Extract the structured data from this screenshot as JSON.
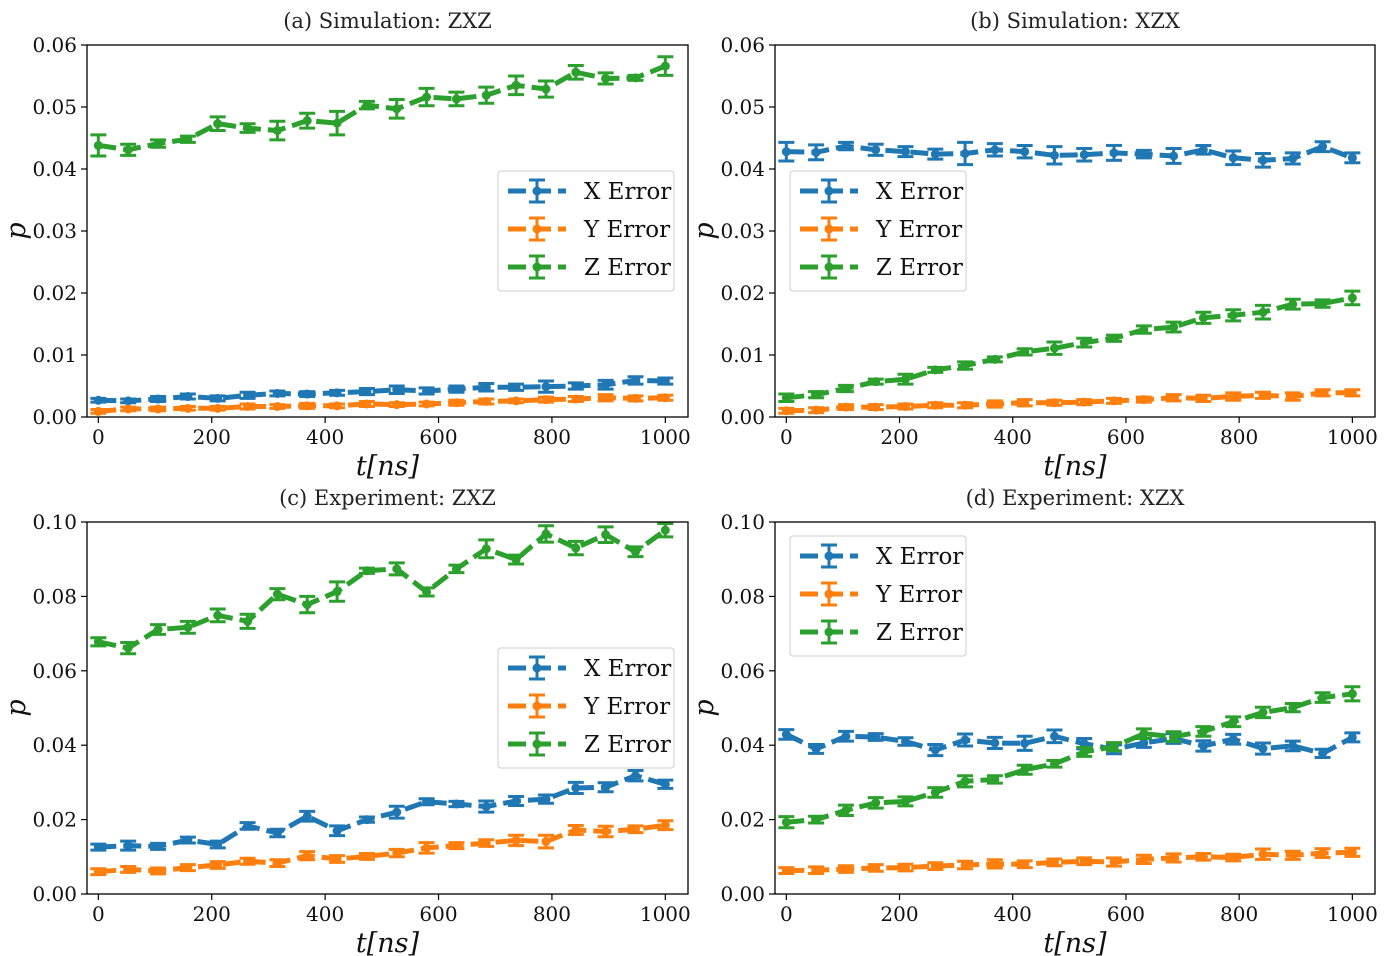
{
  "colors": {
    "x_error": "#1f77b4",
    "y_error": "#ff7f0e",
    "z_error": "#2ca02c"
  },
  "chart_data": [
    {
      "type": "line",
      "title": "(a) Simulation:  ZXZ",
      "xlabel": "t[ns]",
      "ylabel": "p",
      "xlim": [
        -20,
        1040
      ],
      "ylim": [
        0,
        0.06
      ],
      "xticks": [
        "0",
        "200",
        "400",
        "600",
        "800",
        "1000"
      ],
      "yticks": [
        "0.00",
        "0.01",
        "0.02",
        "0.03",
        "0.04",
        "0.05",
        "0.06"
      ],
      "legend_position": "center-right",
      "x": [
        0,
        52.6,
        105.3,
        157.9,
        210.5,
        263.2,
        315.8,
        368.4,
        421.1,
        473.7,
        526.3,
        578.9,
        631.6,
        684.2,
        736.8,
        789.5,
        842.1,
        894.7,
        947.4,
        1000
      ],
      "series": [
        {
          "name": "X Error",
          "color": "#1f77b4",
          "values": [
            0.0027,
            0.0026,
            0.0029,
            0.0033,
            0.003,
            0.0035,
            0.0038,
            0.0037,
            0.0039,
            0.0041,
            0.0044,
            0.0042,
            0.0045,
            0.0048,
            0.0048,
            0.0049,
            0.005,
            0.0052,
            0.0059,
            0.0058
          ],
          "errors": [
            0.0003,
            0.0003,
            0.0004,
            0.0004,
            0.0004,
            0.0005,
            0.0004,
            0.0004,
            0.0004,
            0.0005,
            0.0006,
            0.0005,
            0.0005,
            0.0006,
            0.0005,
            0.0009,
            0.0005,
            0.0007,
            0.0006,
            0.0005
          ]
        },
        {
          "name": "Y Error",
          "color": "#ff7f0e",
          "values": [
            0.0009,
            0.0013,
            0.0013,
            0.0014,
            0.0014,
            0.0017,
            0.0017,
            0.0018,
            0.0018,
            0.0021,
            0.002,
            0.0021,
            0.0023,
            0.0025,
            0.0026,
            0.0028,
            0.0029,
            0.0031,
            0.003,
            0.0031
          ],
          "errors": [
            0.0003,
            0.0003,
            0.0003,
            0.0003,
            0.0003,
            0.0004,
            0.0003,
            0.0004,
            0.0003,
            0.0004,
            0.0003,
            0.0003,
            0.0004,
            0.0004,
            0.0003,
            0.0004,
            0.0004,
            0.0005,
            0.0004,
            0.0004
          ]
        },
        {
          "name": "Z Error",
          "color": "#2ca02c",
          "values": [
            0.0438,
            0.0431,
            0.0441,
            0.0448,
            0.0473,
            0.0466,
            0.0462,
            0.0478,
            0.0474,
            0.0503,
            0.0497,
            0.0516,
            0.0513,
            0.0519,
            0.0535,
            0.0529,
            0.0556,
            0.0546,
            0.0547,
            0.0566
          ],
          "errors": [
            0.0017,
            0.0009,
            0.0006,
            0.0005,
            0.0011,
            0.0007,
            0.0015,
            0.0012,
            0.0019,
            0.0006,
            0.0015,
            0.0014,
            0.0011,
            0.0013,
            0.0015,
            0.0013,
            0.0011,
            0.0009,
            0.0004,
            0.0015
          ]
        }
      ]
    },
    {
      "type": "line",
      "title": "(b) Simulation:  XZX",
      "xlabel": "t[ns]",
      "ylabel": "p",
      "xlim": [
        -20,
        1040
      ],
      "ylim": [
        0,
        0.06
      ],
      "xticks": [
        "0",
        "200",
        "400",
        "600",
        "800",
        "1000"
      ],
      "yticks": [
        "0.00",
        "0.01",
        "0.02",
        "0.03",
        "0.04",
        "0.05",
        "0.06"
      ],
      "legend_position": "center-left",
      "x": [
        0,
        52.6,
        105.3,
        157.9,
        210.5,
        263.2,
        315.8,
        368.4,
        421.1,
        473.7,
        526.3,
        578.9,
        631.6,
        684.2,
        736.8,
        789.5,
        842.1,
        894.7,
        947.4,
        1000
      ],
      "series": [
        {
          "name": "X Error",
          "color": "#1f77b4",
          "values": [
            0.0428,
            0.0427,
            0.0437,
            0.0431,
            0.0428,
            0.0424,
            0.0425,
            0.0431,
            0.0428,
            0.0422,
            0.0423,
            0.0426,
            0.0424,
            0.0421,
            0.0431,
            0.0418,
            0.0414,
            0.0417,
            0.0436,
            0.0418
          ],
          "errors": [
            0.0015,
            0.0012,
            0.0006,
            0.0009,
            0.0008,
            0.0008,
            0.0018,
            0.001,
            0.001,
            0.0014,
            0.001,
            0.0012,
            0.0006,
            0.0012,
            0.0007,
            0.0011,
            0.0011,
            0.0009,
            0.0008,
            0.0008
          ]
        },
        {
          "name": "Y Error",
          "color": "#ff7f0e",
          "values": [
            0.001,
            0.0011,
            0.0016,
            0.0016,
            0.0017,
            0.0019,
            0.0019,
            0.0021,
            0.0023,
            0.0023,
            0.0024,
            0.0026,
            0.0028,
            0.0031,
            0.003,
            0.0033,
            0.0035,
            0.0033,
            0.0039,
            0.0039
          ],
          "errors": [
            0.0004,
            0.0004,
            0.0004,
            0.0004,
            0.0004,
            0.0004,
            0.0004,
            0.0005,
            0.0005,
            0.0004,
            0.0004,
            0.0004,
            0.0004,
            0.0005,
            0.0005,
            0.0006,
            0.0005,
            0.0006,
            0.0005,
            0.0005
          ]
        },
        {
          "name": "Z Error",
          "color": "#2ca02c",
          "values": [
            0.0031,
            0.0036,
            0.0046,
            0.0057,
            0.0061,
            0.0076,
            0.0083,
            0.0093,
            0.0105,
            0.0111,
            0.012,
            0.0127,
            0.0141,
            0.0145,
            0.016,
            0.0164,
            0.0169,
            0.0182,
            0.0183,
            0.0192
          ],
          "errors": [
            0.0006,
            0.0005,
            0.0005,
            0.0004,
            0.0008,
            0.0004,
            0.0006,
            0.0004,
            0.0005,
            0.001,
            0.0007,
            0.0005,
            0.0006,
            0.0008,
            0.0009,
            0.0009,
            0.0011,
            0.0008,
            0.0006,
            0.0011
          ]
        }
      ]
    },
    {
      "type": "line",
      "title": "(c) Experiment:  ZXZ",
      "xlabel": "t[ns]",
      "ylabel": "p",
      "xlim": [
        -20,
        1040
      ],
      "ylim": [
        0,
        0.1
      ],
      "xticks": [
        "0",
        "200",
        "400",
        "600",
        "800",
        "1000"
      ],
      "yticks": [
        "0.00",
        "0.02",
        "0.04",
        "0.06",
        "0.08",
        "0.10"
      ],
      "legend_position": "center-right",
      "x": [
        0,
        52.6,
        105.3,
        157.9,
        210.5,
        263.2,
        315.8,
        368.4,
        421.1,
        473.7,
        526.3,
        578.9,
        631.6,
        684.2,
        736.8,
        789.5,
        842.1,
        894.7,
        947.4,
        1000
      ],
      "series": [
        {
          "name": "X Error",
          "color": "#1f77b4",
          "values": [
            0.0126,
            0.013,
            0.0128,
            0.0145,
            0.0133,
            0.0183,
            0.0164,
            0.0209,
            0.017,
            0.02,
            0.022,
            0.0248,
            0.0242,
            0.0235,
            0.025,
            0.0255,
            0.0285,
            0.0287,
            0.0318,
            0.0295
          ],
          "errors": [
            0.0008,
            0.0012,
            0.0008,
            0.0008,
            0.0009,
            0.0009,
            0.001,
            0.0013,
            0.0013,
            0.0007,
            0.0016,
            0.0008,
            0.0007,
            0.0015,
            0.0012,
            0.0011,
            0.0015,
            0.0012,
            0.0014,
            0.0011
          ]
        },
        {
          "name": "Y Error",
          "color": "#ff7f0e",
          "values": [
            0.006,
            0.0066,
            0.0062,
            0.0071,
            0.0078,
            0.0088,
            0.0083,
            0.0103,
            0.0094,
            0.0101,
            0.011,
            0.0124,
            0.013,
            0.0137,
            0.0144,
            0.0141,
            0.0172,
            0.0168,
            0.0174,
            0.0185
          ],
          "errors": [
            0.0008,
            0.0008,
            0.0008,
            0.0008,
            0.0009,
            0.0008,
            0.0009,
            0.0011,
            0.0009,
            0.0008,
            0.001,
            0.0014,
            0.0008,
            0.0009,
            0.0014,
            0.0017,
            0.0012,
            0.0014,
            0.0009,
            0.0012
          ]
        },
        {
          "name": "Z Error",
          "color": "#2ca02c",
          "values": [
            0.0678,
            0.0661,
            0.0711,
            0.0717,
            0.0749,
            0.0733,
            0.0806,
            0.0778,
            0.0813,
            0.0869,
            0.0874,
            0.0812,
            0.0874,
            0.0928,
            0.0899,
            0.0968,
            0.093,
            0.0966,
            0.092,
            0.0978
          ],
          "errors": [
            0.0011,
            0.0015,
            0.0013,
            0.0016,
            0.0017,
            0.0019,
            0.0015,
            0.0022,
            0.0026,
            0.0007,
            0.0016,
            0.0011,
            0.001,
            0.0024,
            0.0012,
            0.0022,
            0.0018,
            0.0021,
            0.0013,
            0.0018
          ]
        }
      ]
    },
    {
      "type": "line",
      "title": "(d) Experiment:  XZX",
      "xlabel": "t[ns]",
      "ylabel": "p",
      "xlim": [
        -20,
        1040
      ],
      "ylim": [
        0,
        0.1
      ],
      "xticks": [
        "0",
        "200",
        "400",
        "600",
        "800",
        "1000"
      ],
      "yticks": [
        "0.00",
        "0.02",
        "0.04",
        "0.06",
        "0.08",
        "0.10"
      ],
      "legend_position": "upper-left",
      "x": [
        0,
        52.6,
        105.3,
        157.9,
        210.5,
        263.2,
        315.8,
        368.4,
        421.1,
        473.7,
        526.3,
        578.9,
        631.6,
        684.2,
        736.8,
        789.5,
        842.1,
        894.7,
        947.4,
        1000
      ],
      "series": [
        {
          "name": "X Error",
          "color": "#1f77b4",
          "values": [
            0.0429,
            0.039,
            0.0424,
            0.0422,
            0.041,
            0.0387,
            0.0414,
            0.0406,
            0.0405,
            0.0424,
            0.0404,
            0.0389,
            0.0406,
            0.0418,
            0.0398,
            0.0416,
            0.0391,
            0.0398,
            0.0378,
            0.0421
          ],
          "errors": [
            0.0013,
            0.0012,
            0.0013,
            0.0009,
            0.001,
            0.0015,
            0.0016,
            0.0015,
            0.0019,
            0.0017,
            0.0014,
            0.0012,
            0.0012,
            0.0013,
            0.0014,
            0.0013,
            0.0015,
            0.0013,
            0.0011,
            0.0012
          ]
        },
        {
          "name": "Y Error",
          "color": "#ff7f0e",
          "values": [
            0.0063,
            0.0064,
            0.0067,
            0.007,
            0.0071,
            0.0075,
            0.0078,
            0.0081,
            0.008,
            0.0085,
            0.0088,
            0.0086,
            0.0093,
            0.0097,
            0.01,
            0.0098,
            0.0107,
            0.0104,
            0.011,
            0.0112
          ],
          "errors": [
            0.0008,
            0.0009,
            0.0009,
            0.0009,
            0.0009,
            0.0009,
            0.001,
            0.0011,
            0.0009,
            0.0009,
            0.0009,
            0.0011,
            0.0011,
            0.0011,
            0.0009,
            0.0009,
            0.0014,
            0.0011,
            0.0012,
            0.0011
          ]
        },
        {
          "name": "Z Error",
          "color": "#2ca02c",
          "values": [
            0.0193,
            0.02,
            0.0225,
            0.0245,
            0.0249,
            0.0273,
            0.0303,
            0.0308,
            0.0334,
            0.035,
            0.0382,
            0.0396,
            0.0431,
            0.0423,
            0.0437,
            0.0463,
            0.0488,
            0.0501,
            0.0528,
            0.0538
          ],
          "errors": [
            0.0015,
            0.0009,
            0.0014,
            0.0014,
            0.0012,
            0.0013,
            0.0015,
            0.001,
            0.0012,
            0.0009,
            0.0012,
            0.0011,
            0.0013,
            0.0013,
            0.0013,
            0.0013,
            0.0014,
            0.0011,
            0.0013,
            0.0019
          ]
        }
      ]
    }
  ]
}
